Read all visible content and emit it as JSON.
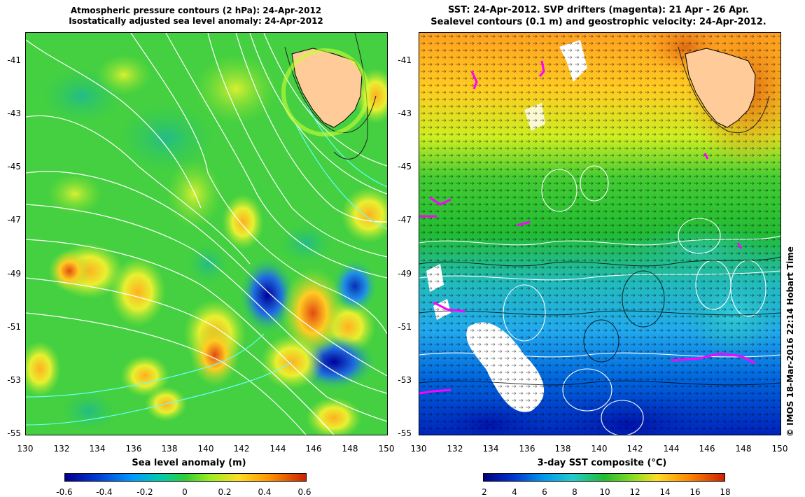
{
  "left_panel": {
    "title_line1": "Atmospheric pressure contours (2 hPa): 24-Apr-2012",
    "title_line2": "Isostatically adjusted sea level anomaly: 24-Apr-2012",
    "colorbar_label": "Sea level anomaly (m)",
    "colorbar_ticks": [
      "-0.6",
      "-0.4",
      "-0.2",
      "0",
      "0.2",
      "0.4",
      "0.6"
    ]
  },
  "right_panel": {
    "title_line1": "SST: 24-Apr-2012. SVP drifters (magenta): 21 Apr - 26 Apr.",
    "title_line2": "Sealevel contours (0.1 m) and geostrophic velocity: 24-Apr-2012.",
    "colorbar_label": "3-day SST composite (°C)",
    "colorbar_ticks": [
      "2",
      "4",
      "6",
      "8",
      "10",
      "12",
      "14",
      "16",
      "18"
    ]
  },
  "axes": {
    "y_ticks": [
      "-41",
      "-43",
      "-45",
      "-47",
      "-49",
      "-51",
      "-53",
      "-55"
    ],
    "x_ticks": [
      "130",
      "132",
      "134",
      "136",
      "138",
      "140",
      "142",
      "144",
      "146",
      "148",
      "150"
    ]
  },
  "copyright": "© IMOS 18-Mar-2016 22:14 Hobart Time",
  "colors": {
    "land": "#ffcc99",
    "drifter": "#ff00ff"
  }
}
